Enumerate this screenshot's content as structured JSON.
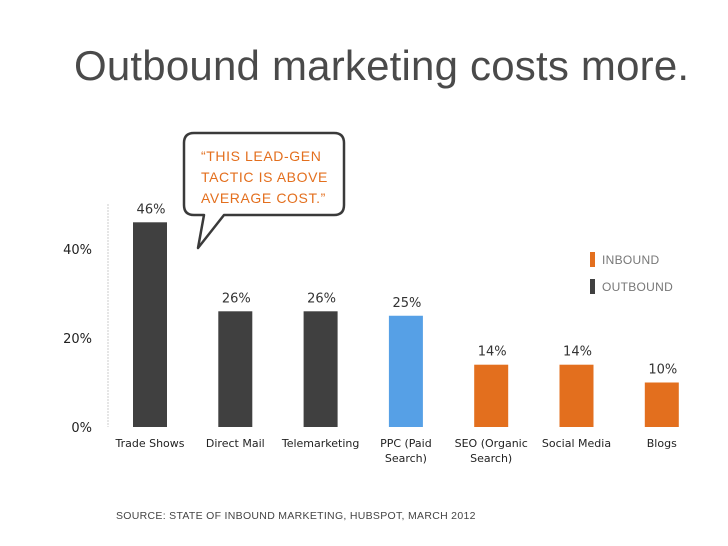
{
  "page": {
    "title": "Outbound marketing costs more.",
    "source": "SOURCE: STATE OF INBOUND MARKETING, HUBSPOT, MARCH 2012"
  },
  "callout": {
    "lines": [
      "“THIS LEAD-GEN",
      "TACTIC IS ABOVE",
      "AVERAGE COST.”"
    ]
  },
  "colors": {
    "inbound": "#e36f1e",
    "outbound": "#404040",
    "highlight": "#56a0e6",
    "callout_text": "#e36f1e"
  },
  "chart_data": {
    "type": "bar",
    "categories": [
      [
        "Trade Shows"
      ],
      [
        "Direct Mail"
      ],
      [
        "Telemarketing"
      ],
      [
        "PPC (Paid",
        "Search)"
      ],
      [
        "SEO (Organic",
        "Search)"
      ],
      [
        "Social Media"
      ],
      [
        "Blogs"
      ]
    ],
    "values": [
      46,
      26,
      26,
      25,
      14,
      14,
      10
    ],
    "value_labels": [
      "46%",
      "26%",
      "26%",
      "25%",
      "14%",
      "14%",
      "10%"
    ],
    "bar_groups": [
      "outbound",
      "outbound",
      "outbound",
      "highlight",
      "inbound",
      "inbound",
      "inbound"
    ],
    "ylim": [
      0,
      50
    ],
    "yticks": [
      0,
      20,
      40
    ],
    "ytick_labels": [
      "0%",
      "20%",
      "40%"
    ],
    "legend": [
      {
        "name": "INBOUND",
        "color": "#e36f1e"
      },
      {
        "name": "OUTBOUND",
        "color": "#404040"
      }
    ],
    "legend_position": "top-right",
    "grid": false
  }
}
